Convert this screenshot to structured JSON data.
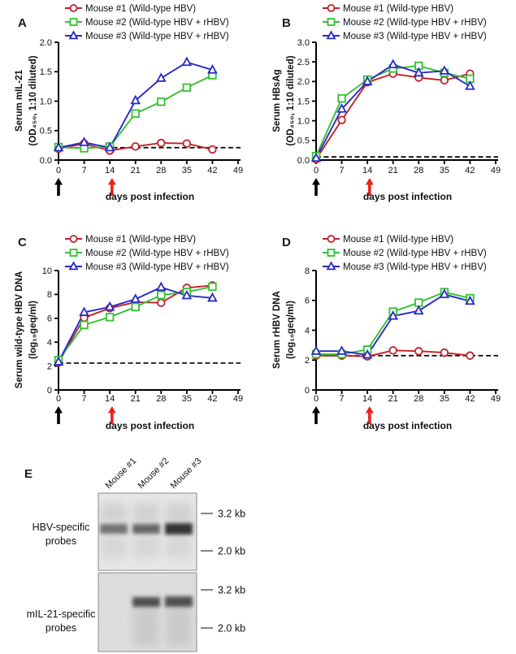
{
  "figure_title": "",
  "chart_data": [
    {
      "panel": "A",
      "type": "line",
      "x": [
        0,
        7,
        14,
        21,
        28,
        35,
        42
      ],
      "xticks": [
        0,
        7,
        14,
        21,
        28,
        35,
        42,
        49
      ],
      "xlim": [
        0,
        49
      ],
      "xlabel": "days post infection",
      "ylabel_lines": [
        "Serum mIL-21",
        "(OD₄₅₀, 1:10 diluted)"
      ],
      "ylim": [
        0,
        2
      ],
      "yticks": [
        {
          "value": 0,
          "label": "0.0"
        },
        {
          "value": 0.5,
          "label": "0.5"
        },
        {
          "value": 1.0,
          "label": "1.0"
        },
        {
          "value": 1.5,
          "label": "1.5"
        },
        {
          "value": 2.0,
          "label": "2.0"
        }
      ],
      "baseline_dashed": 0.21,
      "series": [
        {
          "name": "Mouse #1 (Wild-type HBV)",
          "marker": "circle",
          "color": "#bf2229",
          "values": [
            0.19,
            0.28,
            0.16,
            0.23,
            0.29,
            0.28,
            0.18
          ]
        },
        {
          "name": "Mouse #2 (Wild-type HBV + rHBV)",
          "marker": "square",
          "color": "#32c132",
          "values": [
            0.22,
            0.2,
            0.23,
            0.79,
            0.99,
            1.23,
            1.44
          ]
        },
        {
          "name": "Mouse #3 (Wild-type HBV + rHBV)",
          "marker": "triangle",
          "color": "#2929c8",
          "values": [
            0.21,
            0.3,
            0.21,
            1.01,
            1.39,
            1.66,
            1.53
          ]
        }
      ],
      "arrows": [
        {
          "day": 0,
          "color": "#000000"
        },
        {
          "day": 14.6,
          "color": "#e8231d"
        }
      ]
    },
    {
      "panel": "B",
      "type": "line",
      "x": [
        0,
        7,
        14,
        21,
        28,
        35,
        42
      ],
      "xticks": [
        0,
        7,
        14,
        21,
        28,
        35,
        42,
        49
      ],
      "xlim": [
        0,
        49
      ],
      "xlabel": "days post infection",
      "ylabel_lines": [
        "Serum HBsAg",
        "(OD₄₅₀, 1:10 diluted)"
      ],
      "ylim": [
        0,
        3
      ],
      "yticks": [
        {
          "value": 0,
          "label": "0.0"
        },
        {
          "value": 0.5,
          "label": "0.5"
        },
        {
          "value": 1.0,
          "label": "1.0"
        },
        {
          "value": 1.5,
          "label": "1.5"
        },
        {
          "value": 2.0,
          "label": "2.0"
        },
        {
          "value": 2.5,
          "label": "2.5"
        },
        {
          "value": 3.0,
          "label": "3.0"
        }
      ],
      "baseline_dashed": 0.08,
      "series": [
        {
          "name": "Mouse #1 (Wild-type HBV)",
          "marker": "circle",
          "color": "#bf2229",
          "values": [
            0.02,
            1.02,
            1.98,
            2.2,
            2.1,
            2.03,
            2.2
          ]
        },
        {
          "name": "Mouse #2 (Wild-type HBV + rHBV)",
          "marker": "square",
          "color": "#32c132",
          "values": [
            0.1,
            1.57,
            2.05,
            2.33,
            2.4,
            2.22,
            2.07
          ]
        },
        {
          "name": "Mouse #3 (Wild-type HBV + rHBV)",
          "marker": "triangle",
          "color": "#2929c8",
          "values": [
            0.05,
            1.3,
            2.0,
            2.43,
            2.22,
            2.27,
            1.88
          ]
        }
      ],
      "arrows": [
        {
          "day": 0,
          "color": "#000000"
        },
        {
          "day": 14.6,
          "color": "#e8231d"
        }
      ]
    },
    {
      "panel": "C",
      "type": "line",
      "x": [
        0,
        7,
        14,
        21,
        28,
        35,
        42
      ],
      "xticks": [
        0,
        7,
        14,
        21,
        28,
        35,
        42,
        49
      ],
      "xlim": [
        0,
        49
      ],
      "xlabel": "days post infection",
      "ylabel_lines": [
        "Serum wild-type HBV DNA",
        "(log₁₀geq/ml)"
      ],
      "ylim": [
        0,
        10
      ],
      "yticks": [
        {
          "value": 0,
          "label": "0"
        },
        {
          "value": 2,
          "label": "2"
        },
        {
          "value": 4,
          "label": "4"
        },
        {
          "value": 6,
          "label": "6"
        },
        {
          "value": 8,
          "label": "8"
        },
        {
          "value": 10,
          "label": "10"
        }
      ],
      "baseline_dashed": 2.25,
      "series": [
        {
          "name": "Mouse #1 (Wild-type HBV)",
          "marker": "circle",
          "color": "#bf2229",
          "values": [
            2.3,
            6.05,
            6.85,
            7.35,
            7.3,
            8.55,
            8.75
          ]
        },
        {
          "name": "Mouse #2 (Wild-type HBV + rHBV)",
          "marker": "square",
          "color": "#32c132",
          "values": [
            2.5,
            5.45,
            6.1,
            6.95,
            7.95,
            8.2,
            8.65
          ]
        },
        {
          "name": "Mouse #3 (Wild-type HBV + rHBV)",
          "marker": "triangle",
          "color": "#2929c8",
          "values": [
            2.35,
            6.5,
            6.95,
            7.6,
            8.6,
            7.9,
            7.7
          ]
        }
      ],
      "arrows": [
        {
          "day": 0,
          "color": "#000000"
        },
        {
          "day": 14.6,
          "color": "#e8231d"
        }
      ]
    },
    {
      "panel": "D",
      "type": "line",
      "x": [
        0,
        7,
        14,
        21,
        28,
        35,
        42
      ],
      "xticks": [
        0,
        7,
        14,
        21,
        28,
        35,
        42,
        49
      ],
      "xlim": [
        0,
        49
      ],
      "xlabel": "days post infection",
      "ylabel_lines": [
        "Serum rHBV DNA",
        "(log₁₀geq/ml)"
      ],
      "ylim": [
        0,
        8
      ],
      "yticks": [
        {
          "value": 0,
          "label": "0"
        },
        {
          "value": 2,
          "label": "2"
        },
        {
          "value": 4,
          "label": "4"
        },
        {
          "value": 6,
          "label": "6"
        },
        {
          "value": 8,
          "label": "8"
        }
      ],
      "baseline_dashed": 2.3,
      "series": [
        {
          "name": "Mouse #1 (Wild-type HBV)",
          "marker": "circle",
          "color": "#bf2229",
          "values": [
            2.3,
            2.3,
            2.25,
            2.65,
            2.6,
            2.5,
            2.3
          ]
        },
        {
          "name": "Mouse #2 (Wild-type HBV + rHBV)",
          "marker": "square",
          "color": "#32c132",
          "values": [
            2.4,
            2.4,
            2.7,
            5.25,
            5.85,
            6.55,
            6.15
          ]
        },
        {
          "name": "Mouse #3 (Wild-type HBV + rHBV)",
          "marker": "triangle",
          "color": "#2929c8",
          "values": [
            2.6,
            2.6,
            2.35,
            4.95,
            5.3,
            6.4,
            5.95
          ]
        }
      ],
      "arrows": [
        {
          "day": 0,
          "color": "#000000"
        },
        {
          "day": 14.6,
          "color": "#e8231d"
        }
      ]
    }
  ],
  "gel": {
    "panel": "E",
    "lane_labels": [
      "Mouse #1",
      "Mouse #2",
      "Mouse #3"
    ],
    "blots": [
      {
        "label_lines": [
          "HBV-specific",
          "probes"
        ],
        "size_markers": [
          {
            "label": "3.2 kb",
            "y": 25
          },
          {
            "label": "2.0 kb",
            "y": 71
          }
        ],
        "bands": [
          {
            "lane": 0,
            "y": 38,
            "h": 12,
            "intensity": 0.55
          },
          {
            "lane": 1,
            "y": 38,
            "h": 12,
            "intensity": 0.6
          },
          {
            "lane": 2,
            "y": 37,
            "h": 14,
            "intensity": 0.85
          }
        ],
        "smear_lanes": [
          0,
          1,
          2
        ]
      },
      {
        "label_lines": [
          "mIL-21-specific",
          "probes"
        ],
        "size_markers": [
          {
            "label": "3.2 kb",
            "y": 21
          },
          {
            "label": "2.0 kb",
            "y": 68
          }
        ],
        "bands": [
          {
            "lane": 1,
            "y": 30,
            "h": 12,
            "intensity": 0.7
          },
          {
            "lane": 2,
            "y": 29,
            "h": 13,
            "intensity": 0.7
          }
        ],
        "smear_lanes": [
          1,
          2
        ]
      }
    ]
  }
}
